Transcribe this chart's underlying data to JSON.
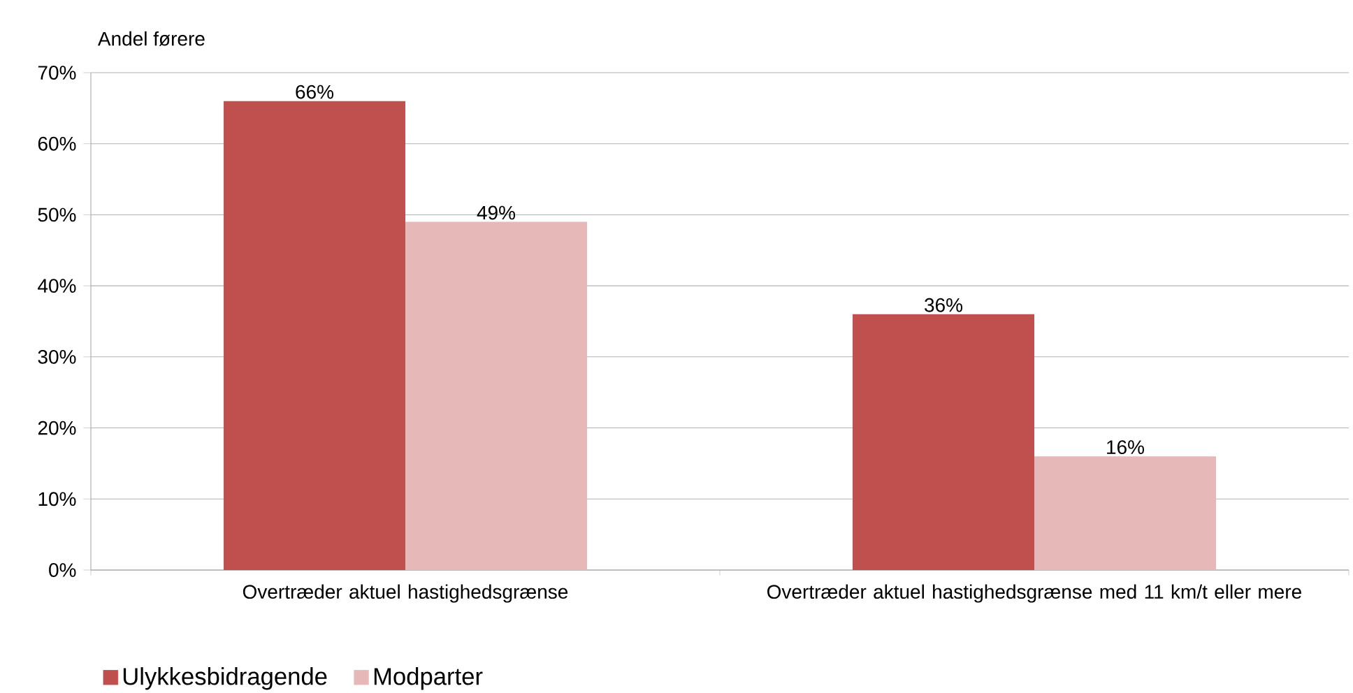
{
  "chart_data": {
    "type": "bar",
    "ylabel": "Andel førere",
    "categories": [
      "Overtræder aktuel hastighedsgrænse",
      "Overtræder aktuel hastighedsgrænse med 11 km/t eller mere"
    ],
    "series": [
      {
        "name": "Ulykkesbidragende",
        "color": "#c0504d",
        "values": [
          66,
          36
        ],
        "value_labels": [
          "66%",
          "36%"
        ]
      },
      {
        "name": "Modparter",
        "color": "#e6b9b8",
        "values": [
          49,
          16
        ],
        "value_labels": [
          "49%",
          "16%"
        ]
      }
    ],
    "ylim": [
      0,
      70
    ],
    "yticks": [
      {
        "value": 0,
        "label": "0%"
      },
      {
        "value": 10,
        "label": "10%"
      },
      {
        "value": 20,
        "label": "20%"
      },
      {
        "value": 30,
        "label": "30%"
      },
      {
        "value": 40,
        "label": "40%"
      },
      {
        "value": 50,
        "label": "50%"
      },
      {
        "value": 60,
        "label": "60%"
      },
      {
        "value": 70,
        "label": "70%"
      }
    ],
    "grid": "y",
    "legend": "bottom left"
  }
}
